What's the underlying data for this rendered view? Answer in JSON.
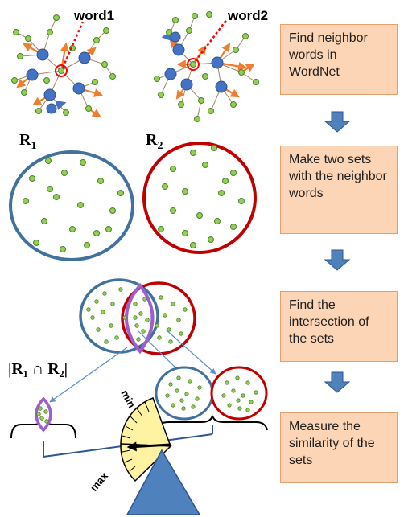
{
  "labels": {
    "word1": "word1",
    "word2": "word2",
    "r1_symbol": "R",
    "r1_sub": "1",
    "r2_symbol": "R",
    "r2_sub": "2",
    "intersection_formula": "|R₁ ∩ R₂|",
    "scale_min": "min",
    "scale_max": "max"
  },
  "steps": [
    {
      "text": "Find neighbor words in WordNet"
    },
    {
      "text": "Make two sets with the neighbor words"
    },
    {
      "text": "Find the intersection of the sets"
    },
    {
      "text": "Measure the similarity of the sets"
    }
  ],
  "colors": {
    "set_r1": "#41719c",
    "set_r2": "#c00000",
    "intersection": "#9e5ecf",
    "node_green": "#92d050",
    "node_blue": "#4472c4",
    "arrow_orange": "#ed7d31",
    "step_box": "#fbd5b5",
    "down_arrow": "#4f81bd",
    "gauge_yellow": "#fff2a0",
    "triangle_blue": "#4f81bd"
  }
}
